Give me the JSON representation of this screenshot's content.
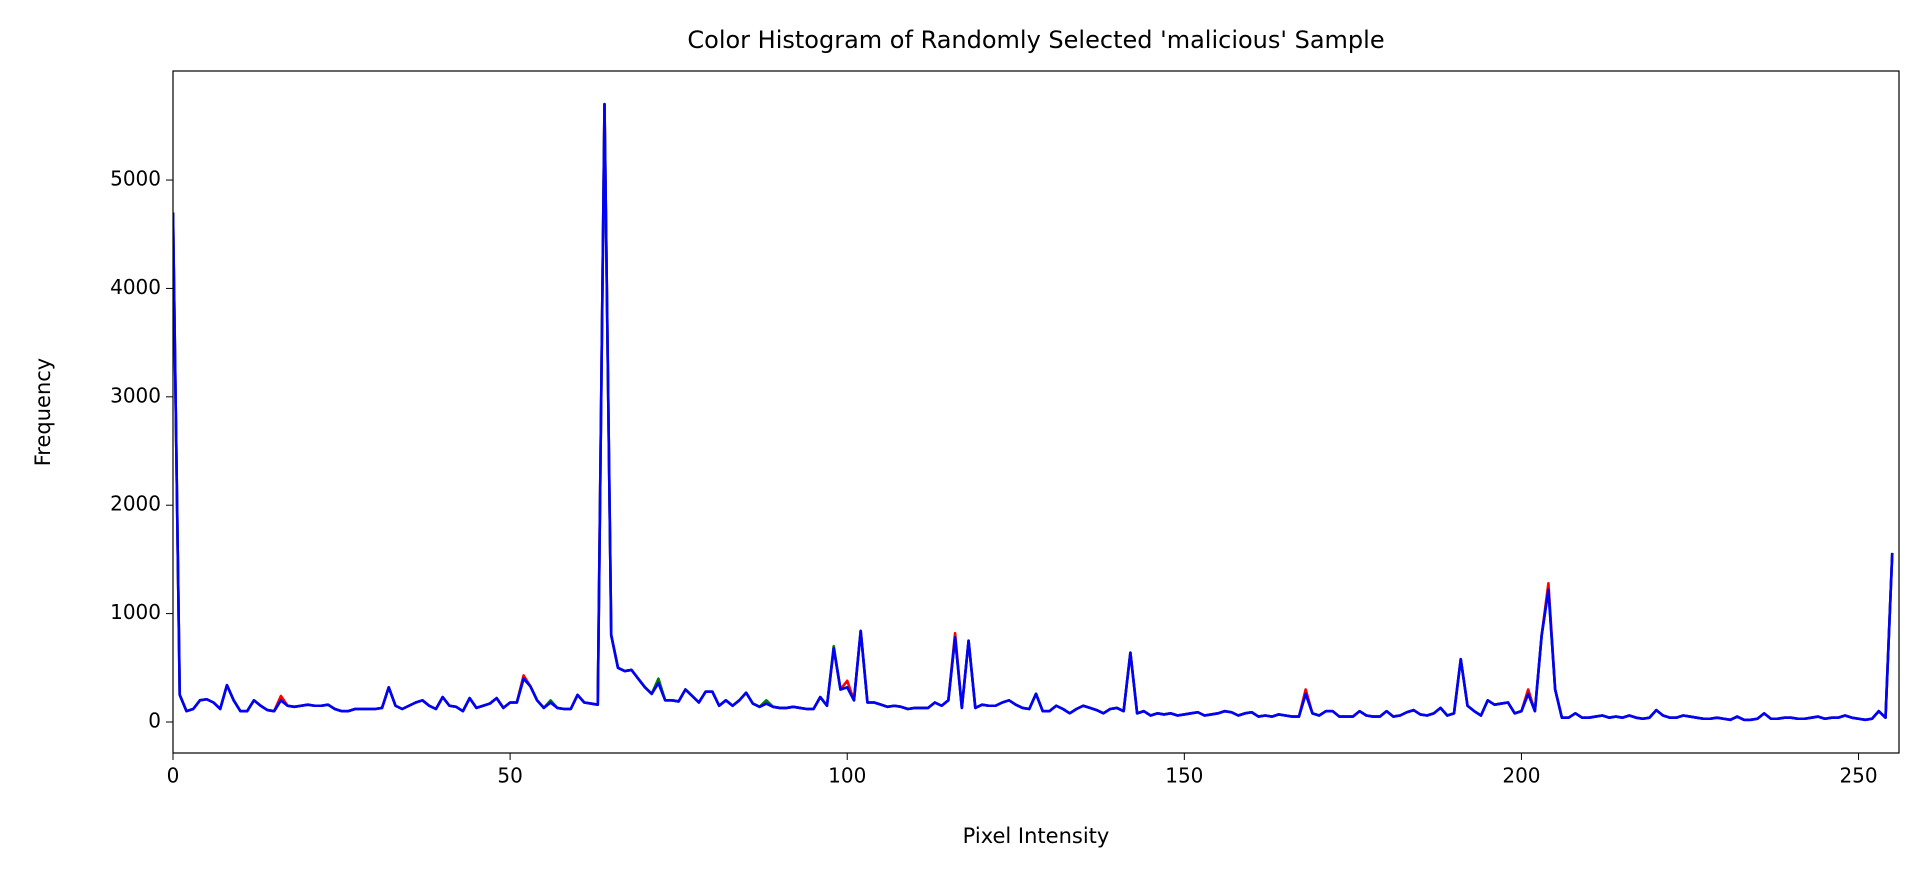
{
  "chart_data": {
    "type": "line",
    "title": "Color Histogram of Randomly Selected 'malicious' Sample",
    "x_label": "Pixel Intensity",
    "y_label": "Frequency",
    "xlim": [
      0,
      256
    ],
    "ylim": [
      -286,
      6006
    ],
    "xticks": [
      0,
      50,
      100,
      150,
      200,
      250
    ],
    "yticks": [
      0,
      1000,
      2000,
      3000,
      4000,
      5000
    ],
    "grid": false,
    "x": [
      0,
      1,
      2,
      3,
      4,
      5,
      6,
      7,
      8,
      9,
      10,
      11,
      12,
      13,
      14,
      15,
      16,
      17,
      18,
      19,
      20,
      21,
      22,
      23,
      24,
      25,
      26,
      27,
      28,
      29,
      30,
      31,
      32,
      33,
      34,
      35,
      36,
      37,
      38,
      39,
      40,
      41,
      42,
      43,
      44,
      45,
      46,
      47,
      48,
      49,
      50,
      51,
      52,
      53,
      54,
      55,
      56,
      57,
      58,
      59,
      60,
      61,
      62,
      63,
      64,
      65,
      66,
      67,
      68,
      69,
      70,
      71,
      72,
      73,
      74,
      75,
      76,
      77,
      78,
      79,
      80,
      81,
      82,
      83,
      84,
      85,
      86,
      87,
      88,
      89,
      90,
      91,
      92,
      93,
      94,
      95,
      96,
      97,
      98,
      99,
      100,
      101,
      102,
      103,
      104,
      105,
      106,
      107,
      108,
      109,
      110,
      111,
      112,
      113,
      114,
      115,
      116,
      117,
      118,
      119,
      120,
      121,
      122,
      123,
      124,
      125,
      126,
      127,
      128,
      129,
      130,
      131,
      132,
      133,
      134,
      135,
      136,
      137,
      138,
      139,
      140,
      141,
      142,
      143,
      144,
      145,
      146,
      147,
      148,
      149,
      150,
      151,
      152,
      153,
      154,
      155,
      156,
      157,
      158,
      159,
      160,
      161,
      162,
      163,
      164,
      165,
      166,
      167,
      168,
      169,
      170,
      171,
      172,
      173,
      174,
      175,
      176,
      177,
      178,
      179,
      180,
      181,
      182,
      183,
      184,
      185,
      186,
      187,
      188,
      189,
      190,
      191,
      192,
      193,
      194,
      195,
      196,
      197,
      198,
      199,
      200,
      201,
      202,
      203,
      204,
      205,
      206,
      207,
      208,
      209,
      210,
      211,
      212,
      213,
      214,
      215,
      216,
      217,
      218,
      219,
      220,
      221,
      222,
      223,
      224,
      225,
      226,
      227,
      228,
      229,
      230,
      231,
      232,
      233,
      234,
      235,
      236,
      237,
      238,
      239,
      240,
      241,
      242,
      243,
      244,
      245,
      246,
      247,
      248,
      249,
      250,
      251,
      252,
      253,
      254,
      255
    ],
    "series": [
      {
        "color": "#ff0000",
        "values": [
          4700,
          250,
          100,
          120,
          200,
          210,
          180,
          120,
          340,
          200,
          100,
          100,
          200,
          150,
          110,
          100,
          240,
          150,
          140,
          150,
          160,
          150,
          150,
          160,
          120,
          100,
          100,
          120,
          120,
          120,
          120,
          130,
          320,
          150,
          120,
          150,
          180,
          200,
          150,
          120,
          230,
          150,
          140,
          100,
          220,
          130,
          150,
          170,
          220,
          130,
          180,
          180,
          430,
          330,
          200,
          130,
          180,
          130,
          120,
          120,
          250,
          180,
          170,
          160,
          5700,
          800,
          500,
          470,
          480,
          400,
          320,
          260,
          360,
          200,
          200,
          190,
          300,
          240,
          180,
          280,
          280,
          150,
          200,
          150,
          200,
          270,
          170,
          140,
          170,
          140,
          130,
          130,
          140,
          130,
          120,
          120,
          230,
          150,
          680,
          300,
          380,
          200,
          840,
          180,
          180,
          160,
          140,
          150,
          140,
          120,
          130,
          130,
          130,
          180,
          150,
          200,
          820,
          130,
          750,
          130,
          160,
          150,
          150,
          180,
          200,
          160,
          130,
          120,
          260,
          100,
          100,
          150,
          120,
          80,
          120,
          150,
          130,
          110,
          80,
          120,
          130,
          100,
          640,
          80,
          100,
          60,
          80,
          70,
          80,
          60,
          70,
          80,
          90,
          60,
          70,
          80,
          100,
          90,
          60,
          80,
          90,
          50,
          60,
          50,
          70,
          60,
          50,
          50,
          300,
          80,
          60,
          100,
          100,
          50,
          50,
          50,
          100,
          60,
          50,
          50,
          100,
          50,
          60,
          90,
          110,
          70,
          60,
          80,
          130,
          60,
          80,
          580,
          150,
          100,
          60,
          200,
          160,
          170,
          180,
          80,
          100,
          300,
          100,
          800,
          1280,
          300,
          40,
          40,
          80,
          40,
          40,
          50,
          60,
          40,
          50,
          40,
          60,
          40,
          30,
          40,
          110,
          60,
          40,
          40,
          60,
          50,
          40,
          30,
          30,
          40,
          30,
          20,
          50,
          20,
          20,
          30,
          80,
          30,
          30,
          40,
          40,
          30,
          30,
          40,
          50,
          30,
          40,
          40,
          60,
          40,
          30,
          20,
          30,
          100,
          40,
          1560
        ]
      },
      {
        "color": "#008000",
        "values": [
          4700,
          250,
          100,
          120,
          200,
          210,
          180,
          120,
          340,
          200,
          100,
          100,
          200,
          150,
          110,
          100,
          200,
          150,
          140,
          150,
          160,
          150,
          150,
          160,
          120,
          100,
          100,
          120,
          120,
          120,
          120,
          130,
          320,
          150,
          120,
          150,
          180,
          200,
          150,
          120,
          230,
          150,
          140,
          100,
          220,
          130,
          150,
          170,
          220,
          130,
          180,
          180,
          400,
          330,
          200,
          130,
          200,
          130,
          120,
          120,
          250,
          180,
          170,
          160,
          5700,
          800,
          500,
          470,
          480,
          400,
          320,
          260,
          400,
          200,
          200,
          190,
          300,
          240,
          180,
          280,
          280,
          150,
          200,
          150,
          200,
          270,
          170,
          140,
          200,
          140,
          130,
          130,
          140,
          130,
          120,
          120,
          230,
          150,
          700,
          300,
          320,
          200,
          840,
          180,
          180,
          160,
          140,
          150,
          140,
          120,
          130,
          130,
          130,
          180,
          150,
          200,
          780,
          130,
          750,
          130,
          160,
          150,
          150,
          180,
          200,
          160,
          130,
          120,
          260,
          100,
          100,
          150,
          120,
          80,
          120,
          150,
          130,
          110,
          80,
          120,
          130,
          100,
          640,
          80,
          100,
          60,
          80,
          70,
          80,
          60,
          70,
          80,
          90,
          60,
          70,
          80,
          100,
          90,
          60,
          80,
          90,
          50,
          60,
          50,
          70,
          60,
          50,
          50,
          260,
          80,
          60,
          100,
          100,
          50,
          50,
          50,
          100,
          60,
          50,
          50,
          100,
          50,
          60,
          90,
          110,
          70,
          60,
          80,
          130,
          60,
          80,
          580,
          150,
          100,
          60,
          200,
          160,
          170,
          180,
          80,
          100,
          260,
          100,
          800,
          1220,
          300,
          40,
          40,
          80,
          40,
          40,
          50,
          60,
          40,
          50,
          40,
          60,
          40,
          30,
          40,
          110,
          60,
          40,
          40,
          60,
          50,
          40,
          30,
          30,
          40,
          30,
          20,
          50,
          20,
          20,
          30,
          80,
          30,
          30,
          40,
          40,
          30,
          30,
          40,
          50,
          30,
          40,
          40,
          60,
          40,
          30,
          20,
          30,
          100,
          40,
          1560
        ]
      },
      {
        "color": "#0000ff",
        "values": [
          4700,
          250,
          100,
          120,
          200,
          210,
          180,
          120,
          340,
          200,
          100,
          100,
          200,
          150,
          110,
          100,
          200,
          150,
          140,
          150,
          160,
          150,
          150,
          160,
          120,
          100,
          100,
          120,
          120,
          120,
          120,
          130,
          320,
          150,
          120,
          150,
          180,
          200,
          150,
          120,
          230,
          150,
          140,
          100,
          220,
          130,
          150,
          170,
          220,
          130,
          180,
          180,
          400,
          330,
          200,
          130,
          180,
          130,
          120,
          120,
          250,
          180,
          170,
          160,
          5700,
          800,
          500,
          470,
          480,
          400,
          320,
          260,
          360,
          200,
          200,
          190,
          300,
          240,
          180,
          280,
          280,
          150,
          200,
          150,
          200,
          270,
          170,
          140,
          170,
          140,
          130,
          130,
          140,
          130,
          120,
          120,
          230,
          150,
          680,
          300,
          320,
          200,
          840,
          180,
          180,
          160,
          140,
          150,
          140,
          120,
          130,
          130,
          130,
          180,
          150,
          200,
          780,
          130,
          750,
          130,
          160,
          150,
          150,
          180,
          200,
          160,
          130,
          120,
          260,
          100,
          100,
          150,
          120,
          80,
          120,
          150,
          130,
          110,
          80,
          120,
          130,
          100,
          640,
          80,
          100,
          60,
          80,
          70,
          80,
          60,
          70,
          80,
          90,
          60,
          70,
          80,
          100,
          90,
          60,
          80,
          90,
          50,
          60,
          50,
          70,
          60,
          50,
          50,
          260,
          80,
          60,
          100,
          100,
          50,
          50,
          50,
          100,
          60,
          50,
          50,
          100,
          50,
          60,
          90,
          110,
          70,
          60,
          80,
          130,
          60,
          80,
          580,
          150,
          100,
          60,
          200,
          160,
          170,
          180,
          80,
          100,
          260,
          100,
          800,
          1220,
          300,
          40,
          40,
          80,
          40,
          40,
          50,
          60,
          40,
          50,
          40,
          60,
          40,
          30,
          40,
          110,
          60,
          40,
          40,
          60,
          50,
          40,
          30,
          30,
          40,
          30,
          20,
          50,
          20,
          20,
          30,
          80,
          30,
          30,
          40,
          40,
          30,
          30,
          40,
          50,
          30,
          40,
          40,
          60,
          40,
          30,
          20,
          30,
          100,
          40,
          1560
        ]
      }
    ]
  }
}
